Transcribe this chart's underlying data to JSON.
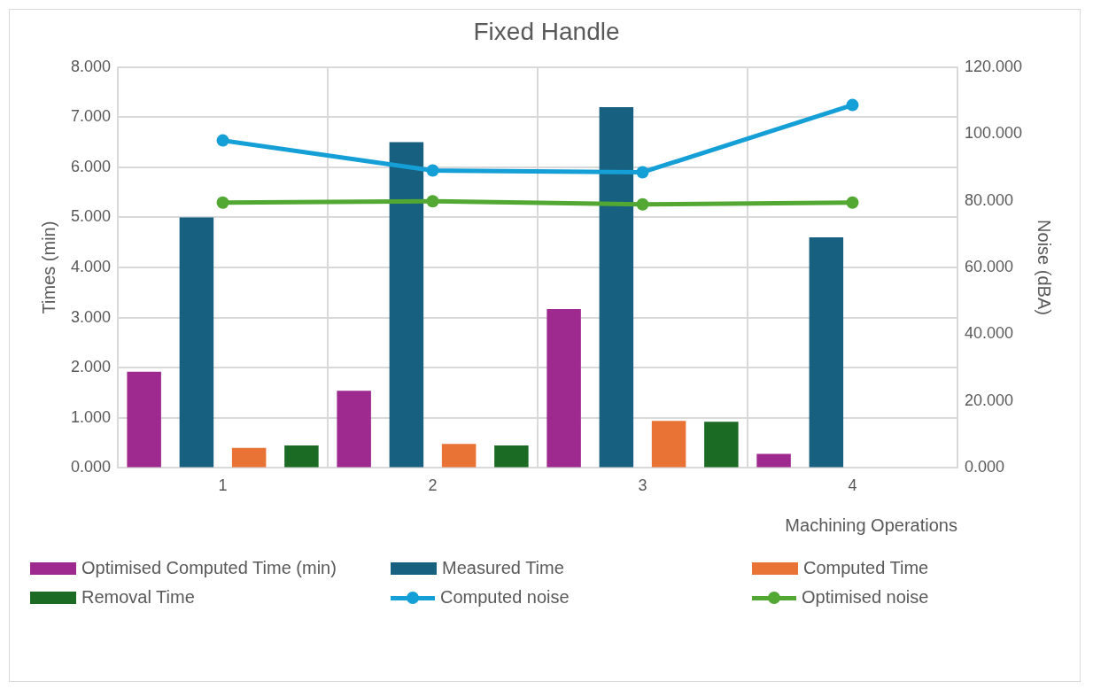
{
  "chart_data": {
    "type": "bar",
    "title": "Fixed Handle",
    "xlabel": "Machining Operations",
    "ylabel": "Times (min)",
    "y2label": "Noise (dBA)",
    "categories": [
      "1",
      "2",
      "3",
      "4"
    ],
    "series": [
      {
        "name": "Optimised Computed Time (min)",
        "color": "#9e2a8f",
        "values": [
          1.92,
          1.54,
          3.17,
          0.28
        ]
      },
      {
        "name": "Measured Time",
        "color": "#17607f",
        "values": [
          5.0,
          6.5,
          7.2,
          4.6
        ]
      },
      {
        "name": "Computed Time",
        "color": "#e97334",
        "values": [
          0.4,
          0.48,
          0.94,
          null
        ]
      },
      {
        "name": "Removal Time",
        "color": "#1b6b24",
        "values": [
          0.45,
          0.45,
          0.92,
          null
        ]
      },
      {
        "name": "Computed noise",
        "type": "line",
        "axis": "y2",
        "color": "#149fd6",
        "values": [
          98,
          89,
          88.5,
          108.6
        ]
      },
      {
        "name": "Optimised noise",
        "type": "line",
        "axis": "y2",
        "color": "#52a832",
        "values": [
          79.4,
          79.8,
          78.9,
          79.4
        ]
      }
    ],
    "ylim": [
      0,
      8
    ],
    "yticks": [
      {
        "value": 0,
        "label": "0.000"
      },
      {
        "value": 1,
        "label": "1.000"
      },
      {
        "value": 2,
        "label": "2.000"
      },
      {
        "value": 3,
        "label": "3.000"
      },
      {
        "value": 4,
        "label": "4.000"
      },
      {
        "value": 5,
        "label": "5.000"
      },
      {
        "value": 6,
        "label": "6.000"
      },
      {
        "value": 7,
        "label": "7.000"
      },
      {
        "value": 8,
        "label": "8.000"
      }
    ],
    "y2lim": [
      0,
      120
    ],
    "y2ticks": [
      {
        "value": 0,
        "label": "0.000"
      },
      {
        "value": 20,
        "label": "20.000"
      },
      {
        "value": 40,
        "label": "40.000"
      },
      {
        "value": 60,
        "label": "60.000"
      },
      {
        "value": 80,
        "label": "80.000"
      },
      {
        "value": 100,
        "label": "100.000"
      },
      {
        "value": 120,
        "label": "120.000"
      }
    ],
    "grid": true,
    "legend": "bottom",
    "marker": "circle",
    "line_style": "solid"
  }
}
